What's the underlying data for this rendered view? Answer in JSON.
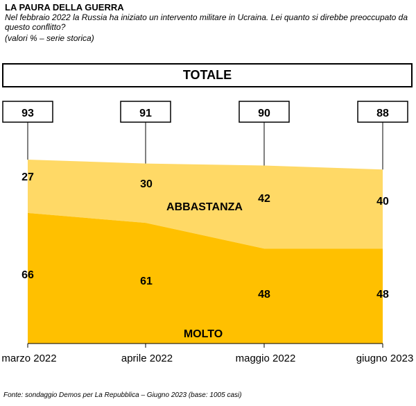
{
  "header": {
    "title": "LA PAURA DELLA GUERRA",
    "subtitle": "Nel febbraio 2022 la Russia ha iniziato un intervento militare in Ucraina. Lei quanto si direbbe preoccupato da questo conflitto?",
    "note": "(valori % – serie storica)"
  },
  "panel_title": "TOTALE",
  "footer": "Fonte: sondaggio Demos per La Repubblica – Giugno 2023 (base: 1005 casi)",
  "colors": {
    "molto": "#FFC000",
    "abbastanza": "#FFD966",
    "axis": "#000000"
  },
  "chart_data": {
    "type": "area",
    "stacked": true,
    "categories": [
      "marzo 2022",
      "aprile 2022",
      "maggio 2022",
      "giugno 2023"
    ],
    "series": [
      {
        "name": "MOLTO",
        "values": [
          66,
          61,
          48,
          48
        ]
      },
      {
        "name": "ABBASTANZA",
        "values": [
          27,
          30,
          42,
          40
        ]
      }
    ],
    "totals": [
      93,
      91,
      90,
      88
    ],
    "ylim": [
      0,
      100
    ],
    "grid": false,
    "legend": "series labels inside areas"
  }
}
